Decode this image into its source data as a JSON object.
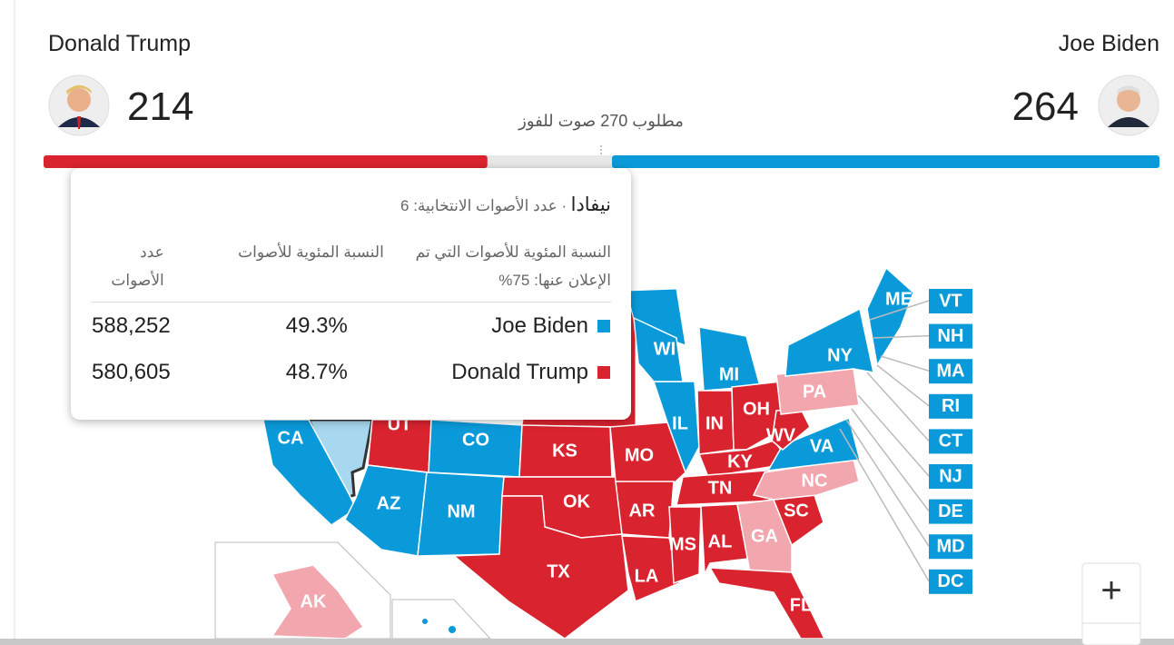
{
  "candidates": [
    {
      "name": "Donald Trump",
      "votes": 214,
      "color": "#d9232e"
    },
    {
      "name": "Joe Biden",
      "votes": 264,
      "color": "#0b9ad9"
    }
  ],
  "needed": "مطلوب 270 صوت للفوز",
  "tooltip": {
    "state": "نيفادا",
    "electoral": "· عدد الأصوات الانتخابية: 6",
    "headers": [
      "النسبة المئوية للأصوات التي تم الإعلان عنها: 75%",
      "النسبة المئوية للأصوات",
      "عدد الأصوات"
    ],
    "rows": [
      {
        "name": "Joe Biden",
        "color": "#0b9ad9",
        "percent": "49.3%",
        "votes": "588,252"
      },
      {
        "name": "Donald Trump",
        "color": "#d9232e",
        "percent": "48.7%",
        "votes": "580,605"
      }
    ]
  },
  "states": [
    {
      "label": "CA",
      "color": "#0b9ad9"
    },
    {
      "label": "UT",
      "color": "#d9232e"
    },
    {
      "label": "CO",
      "color": "#0b9ad9"
    },
    {
      "label": "AZ",
      "color": "#0b9ad9"
    },
    {
      "label": "NM",
      "color": "#0b9ad9"
    },
    {
      "label": "KS",
      "color": "#d9232e"
    },
    {
      "label": "OK",
      "color": "#d9232e"
    },
    {
      "label": "TX",
      "color": "#d9232e"
    },
    {
      "label": "MO",
      "color": "#d9232e"
    },
    {
      "label": "AR",
      "color": "#d9232e"
    },
    {
      "label": "LA",
      "color": "#d9232e"
    },
    {
      "label": "IL",
      "color": "#0b9ad9"
    },
    {
      "label": "WI",
      "color": "#0b9ad9"
    },
    {
      "label": "MI",
      "color": "#0b9ad9"
    },
    {
      "label": "IN",
      "color": "#d9232e"
    },
    {
      "label": "OH",
      "color": "#d9232e"
    },
    {
      "label": "KY",
      "color": "#d9232e"
    },
    {
      "label": "TN",
      "color": "#d9232e"
    },
    {
      "label": "MS",
      "color": "#d9232e"
    },
    {
      "label": "AL",
      "color": "#d9232e"
    },
    {
      "label": "GA",
      "color": "#f2a6ae"
    },
    {
      "label": "SC",
      "color": "#d9232e"
    },
    {
      "label": "NC",
      "color": "#f2a6ae"
    },
    {
      "label": "FL",
      "color": "#d9232e"
    },
    {
      "label": "VA",
      "color": "#0b9ad9"
    },
    {
      "label": "WV",
      "color": "#d9232e"
    },
    {
      "label": "PA",
      "color": "#f2a6ae"
    },
    {
      "label": "NY",
      "color": "#0b9ad9"
    },
    {
      "label": "ME",
      "color": "#0b9ad9"
    },
    {
      "label": "AK",
      "color": "#f2a6ae"
    }
  ],
  "small_states": [
    {
      "label": "VT",
      "color": "#0b9ad9"
    },
    {
      "label": "NH",
      "color": "#0b9ad9"
    },
    {
      "label": "MA",
      "color": "#0b9ad9"
    },
    {
      "label": "RI",
      "color": "#0b9ad9"
    },
    {
      "label": "CT",
      "color": "#0b9ad9"
    },
    {
      "label": "NJ",
      "color": "#0b9ad9"
    },
    {
      "label": "DE",
      "color": "#0b9ad9"
    },
    {
      "label": "MD",
      "color": "#0b9ad9"
    },
    {
      "label": "DC",
      "color": "#0b9ad9"
    }
  ],
  "zoom": "+"
}
